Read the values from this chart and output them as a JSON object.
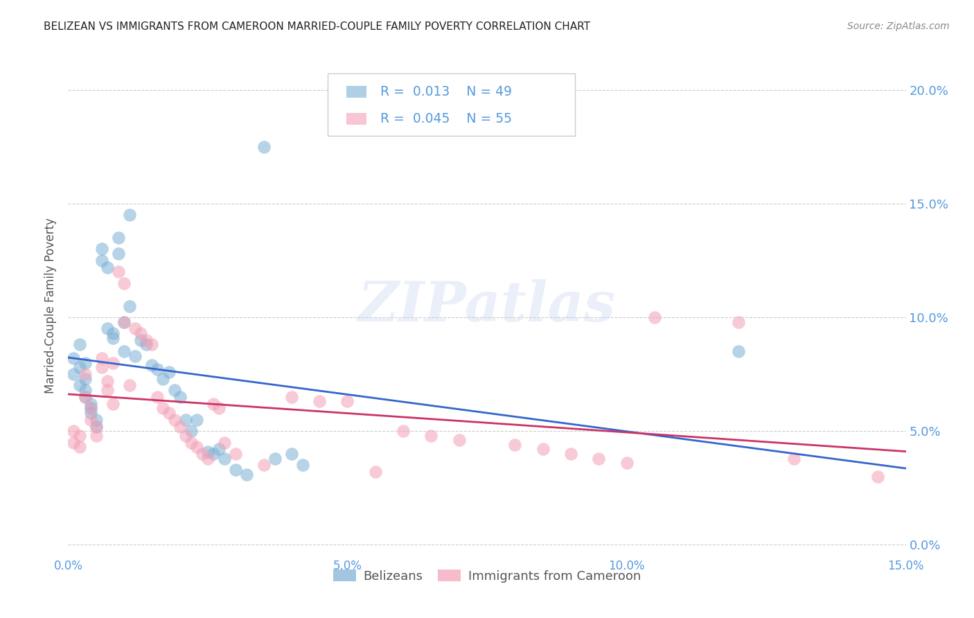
{
  "title": "BELIZEAN VS IMMIGRANTS FROM CAMEROON MARRIED-COUPLE FAMILY POVERTY CORRELATION CHART",
  "source": "Source: ZipAtlas.com",
  "ylabel": "Married-Couple Family Poverty",
  "xlim": [
    0.0,
    0.15
  ],
  "ylim": [
    -0.005,
    0.215
  ],
  "x_tick_vals": [
    0.0,
    0.05,
    0.1,
    0.15
  ],
  "y_tick_vals": [
    0.0,
    0.05,
    0.1,
    0.15,
    0.2
  ],
  "legend_label1": "Belizeans",
  "legend_label2": "Immigrants from Cameroon",
  "R1": "0.013",
  "N1": "49",
  "R2": "0.045",
  "N2": "55",
  "color1": "#7BAFD4",
  "color2": "#F4A0B5",
  "line_color1": "#3366CC",
  "line_color2": "#CC3366",
  "axis_color": "#5599DD",
  "watermark": "ZIPatlas",
  "belizean_x": [
    0.001,
    0.001,
    0.002,
    0.002,
    0.002,
    0.003,
    0.003,
    0.003,
    0.003,
    0.004,
    0.004,
    0.004,
    0.005,
    0.005,
    0.006,
    0.006,
    0.007,
    0.007,
    0.008,
    0.008,
    0.009,
    0.009,
    0.01,
    0.01,
    0.011,
    0.011,
    0.012,
    0.013,
    0.014,
    0.015,
    0.016,
    0.017,
    0.018,
    0.019,
    0.02,
    0.021,
    0.022,
    0.023,
    0.025,
    0.026,
    0.027,
    0.028,
    0.03,
    0.032,
    0.035,
    0.037,
    0.04,
    0.042,
    0.12
  ],
  "belizean_y": [
    0.082,
    0.075,
    0.088,
    0.078,
    0.07,
    0.073,
    0.068,
    0.065,
    0.08,
    0.062,
    0.06,
    0.058,
    0.055,
    0.052,
    0.13,
    0.125,
    0.122,
    0.095,
    0.093,
    0.091,
    0.135,
    0.128,
    0.098,
    0.085,
    0.145,
    0.105,
    0.083,
    0.09,
    0.088,
    0.079,
    0.077,
    0.073,
    0.076,
    0.068,
    0.065,
    0.055,
    0.05,
    0.055,
    0.041,
    0.04,
    0.042,
    0.038,
    0.033,
    0.031,
    0.175,
    0.038,
    0.04,
    0.035,
    0.085
  ],
  "cameroon_x": [
    0.001,
    0.001,
    0.002,
    0.002,
    0.003,
    0.003,
    0.004,
    0.004,
    0.005,
    0.005,
    0.006,
    0.006,
    0.007,
    0.007,
    0.008,
    0.008,
    0.009,
    0.01,
    0.01,
    0.011,
    0.012,
    0.013,
    0.014,
    0.015,
    0.016,
    0.017,
    0.018,
    0.019,
    0.02,
    0.021,
    0.022,
    0.023,
    0.024,
    0.025,
    0.026,
    0.027,
    0.028,
    0.03,
    0.035,
    0.04,
    0.045,
    0.05,
    0.055,
    0.06,
    0.065,
    0.07,
    0.08,
    0.085,
    0.09,
    0.095,
    0.1,
    0.105,
    0.12,
    0.13,
    0.145
  ],
  "cameroon_y": [
    0.05,
    0.045,
    0.048,
    0.043,
    0.075,
    0.065,
    0.06,
    0.055,
    0.052,
    0.048,
    0.082,
    0.078,
    0.072,
    0.068,
    0.08,
    0.062,
    0.12,
    0.115,
    0.098,
    0.07,
    0.095,
    0.093,
    0.09,
    0.088,
    0.065,
    0.06,
    0.058,
    0.055,
    0.052,
    0.048,
    0.045,
    0.043,
    0.04,
    0.038,
    0.062,
    0.06,
    0.045,
    0.04,
    0.035,
    0.065,
    0.063,
    0.063,
    0.032,
    0.05,
    0.048,
    0.046,
    0.044,
    0.042,
    0.04,
    0.038,
    0.036,
    0.1,
    0.098,
    0.038,
    0.03
  ]
}
